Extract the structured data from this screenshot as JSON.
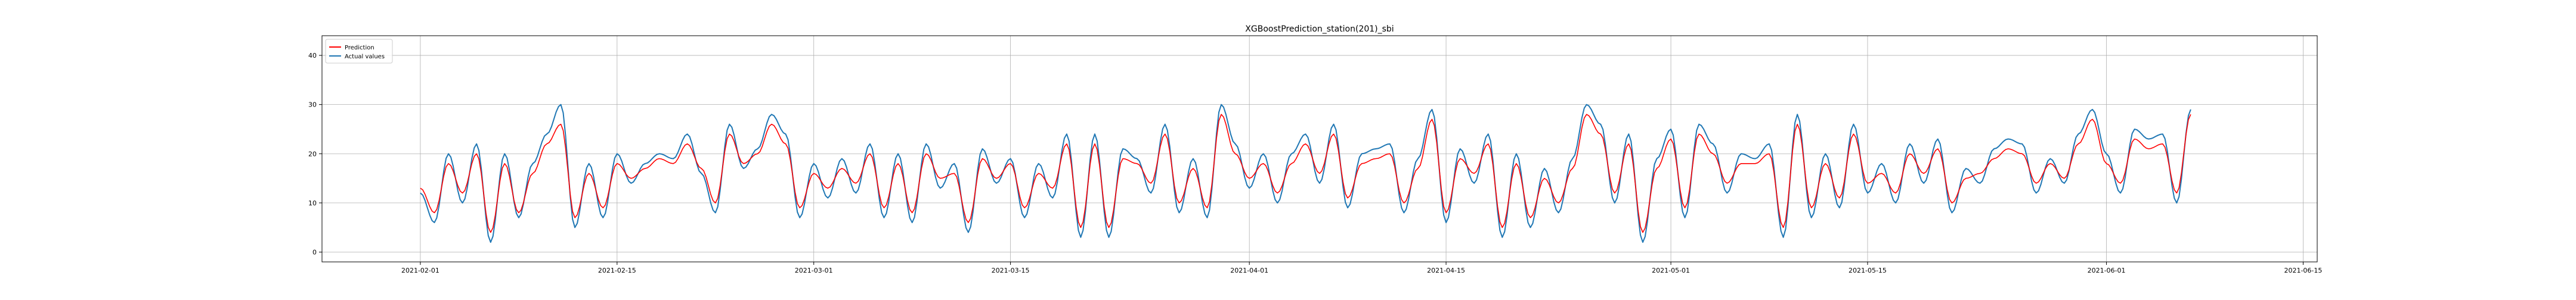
{
  "chart_data": {
    "type": "line",
    "title": "XGBoostPrediction_station(201)_sbi",
    "xlabel": "",
    "ylabel": "",
    "x_start": "2021-02-01",
    "x_end": "2021-06-10",
    "xlim": [
      "2021-01-25",
      "2021-06-16"
    ],
    "ylim": [
      -2,
      44
    ],
    "grid": true,
    "legend_position": "top-left",
    "x_ticks": [
      "2021-02-01",
      "2021-02-15",
      "2021-03-01",
      "2021-03-15",
      "2021-04-01",
      "2021-04-15",
      "2021-05-01",
      "2021-05-15",
      "2021-06-01",
      "2021-06-15"
    ],
    "y_ticks": [
      0,
      10,
      20,
      30,
      40
    ],
    "series": [
      {
        "name": "Prediction",
        "color": "#ff0000",
        "daily_values": [
          13,
          8,
          18,
          12,
          20,
          4,
          18,
          8,
          16,
          22,
          26,
          7,
          16,
          9,
          18,
          15,
          17,
          19,
          18,
          22,
          17,
          10,
          24,
          18,
          20,
          26,
          22,
          9,
          16,
          13,
          17,
          14,
          20,
          9,
          18,
          8,
          20,
          15,
          16,
          6,
          19,
          15,
          18,
          9,
          16,
          13,
          22,
          5,
          22,
          5,
          19,
          18,
          14,
          24,
          10,
          17,
          9,
          28,
          20,
          15,
          18,
          12,
          18,
          22,
          16,
          24,
          11,
          18,
          19,
          20,
          10,
          17,
          27,
          8,
          19,
          16,
          22,
          5,
          18,
          7,
          15,
          10,
          17,
          28,
          24,
          12,
          22,
          4,
          17,
          23,
          9,
          24,
          20,
          14,
          18,
          18,
          20,
          5,
          26,
          9,
          18,
          11,
          24,
          14,
          16,
          12,
          20,
          16,
          21,
          10,
          15,
          16,
          19,
          21,
          20,
          14,
          18,
          15,
          22,
          27,
          18,
          14,
          23,
          21,
          22,
          12,
          28
        ]
      },
      {
        "name": "Actual values",
        "color": "#1f77b4",
        "daily_values": [
          12,
          6,
          20,
          10,
          22,
          2,
          20,
          7,
          18,
          24,
          30,
          5,
          18,
          7,
          20,
          14,
          18,
          20,
          19,
          24,
          16,
          8,
          26,
          17,
          21,
          28,
          24,
          7,
          18,
          11,
          19,
          12,
          22,
          7,
          20,
          6,
          22,
          13,
          18,
          4,
          21,
          14,
          19,
          7,
          18,
          11,
          24,
          3,
          24,
          3,
          21,
          19,
          12,
          26,
          8,
          19,
          7,
          30,
          22,
          13,
          20,
          10,
          20,
          24,
          14,
          26,
          9,
          20,
          21,
          22,
          8,
          19,
          29,
          6,
          21,
          14,
          24,
          3,
          20,
          5,
          17,
          8,
          19,
          30,
          26,
          10,
          24,
          2,
          19,
          25,
          7,
          26,
          22,
          12,
          20,
          19,
          22,
          3,
          28,
          7,
          20,
          9,
          26,
          12,
          18,
          10,
          22,
          14,
          23,
          8,
          17,
          14,
          21,
          23,
          22,
          12,
          19,
          14,
          24,
          29,
          20,
          12,
          25,
          23,
          24,
          10,
          29
        ]
      }
    ]
  }
}
